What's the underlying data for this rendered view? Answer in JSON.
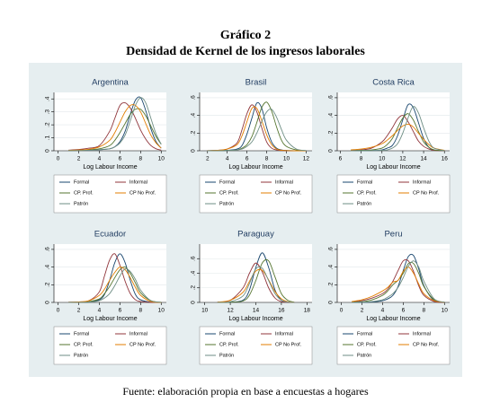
{
  "header": {
    "title": "Gráfico 2",
    "subtitle": "Densidad de Kernel de los ingresos laborales"
  },
  "source": "Fuente: elaboración propia en base a encuestas a hogares",
  "chart_data": [
    {
      "type": "line",
      "title": "Argentina",
      "x_label": "Log Labour Income",
      "x": [
        1,
        2,
        3,
        4,
        5,
        5.5,
        6,
        6.5,
        7,
        7.5,
        8,
        8.5,
        9,
        9.5,
        10
      ],
      "xlim": [
        -0.4,
        10.5
      ],
      "ylim": [
        0,
        0.45
      ],
      "xticks": [
        0,
        2,
        4,
        6,
        8,
        10
      ],
      "yticks": [
        0,
        {
          "value": 0.1,
          "label": ".1"
        },
        {
          "value": 0.2,
          "label": ".2"
        },
        {
          "value": 0.3,
          "label": ".3"
        },
        {
          "value": 0.4,
          "label": ".4"
        }
      ],
      "series": [
        {
          "name": "Formal",
          "color": "#1a476f",
          "values": [
            0.002,
            0.003,
            0.005,
            0.008,
            0.015,
            0.03,
            0.07,
            0.15,
            0.28,
            0.39,
            0.41,
            0.31,
            0.17,
            0.07,
            0.02
          ]
        },
        {
          "name": "Informal",
          "color": "#90353b",
          "values": [
            0.005,
            0.01,
            0.02,
            0.04,
            0.15,
            0.25,
            0.35,
            0.37,
            0.33,
            0.25,
            0.16,
            0.09,
            0.04,
            0.015,
            0.005
          ]
        },
        {
          "name": "CP. Prof.",
          "color": "#55752f",
          "values": [
            0.002,
            0.004,
            0.008,
            0.015,
            0.04,
            0.08,
            0.14,
            0.21,
            0.28,
            0.32,
            0.32,
            0.27,
            0.19,
            0.11,
            0.05
          ]
        },
        {
          "name": "CP No Prof.",
          "color": "#e37e00",
          "values": [
            0.003,
            0.006,
            0.012,
            0.03,
            0.08,
            0.14,
            0.22,
            0.3,
            0.35,
            0.35,
            0.3,
            0.21,
            0.12,
            0.06,
            0.02
          ]
        },
        {
          "name": "Patrón",
          "color": "#6e8e84",
          "values": [
            0.001,
            0.002,
            0.004,
            0.008,
            0.015,
            0.03,
            0.06,
            0.12,
            0.23,
            0.35,
            0.41,
            0.37,
            0.25,
            0.13,
            0.05
          ]
        }
      ]
    },
    {
      "type": "line",
      "title": "Brasil",
      "x_label": "Log Labour Income",
      "x": [
        2,
        3,
        4,
        5,
        5.5,
        6,
        6.5,
        7,
        7.5,
        8,
        8.5,
        9,
        9.5,
        10,
        11,
        12
      ],
      "xlim": [
        1.2,
        12.6
      ],
      "ylim": [
        0,
        0.66
      ],
      "xticks": [
        2,
        4,
        6,
        8,
        10,
        12
      ],
      "yticks": [
        0,
        {
          "value": 0.2,
          "label": ".2"
        },
        {
          "value": 0.4,
          "label": ".4"
        },
        {
          "value": 0.6,
          "label": ".6"
        }
      ],
      "series": [
        {
          "name": "Formal",
          "color": "#1a476f",
          "values": [
            0,
            0.002,
            0.005,
            0.02,
            0.06,
            0.19,
            0.37,
            0.54,
            0.48,
            0.26,
            0.1,
            0.03,
            0.01,
            0.004,
            0.001,
            0
          ]
        },
        {
          "name": "Informal",
          "color": "#90353b",
          "values": [
            0.002,
            0.005,
            0.02,
            0.09,
            0.24,
            0.42,
            0.52,
            0.44,
            0.26,
            0.1,
            0.03,
            0.01,
            0.003,
            0.001,
            0,
            0
          ]
        },
        {
          "name": "CP. Prof.",
          "color": "#55752f",
          "values": [
            0,
            0.002,
            0.004,
            0.01,
            0.03,
            0.07,
            0.16,
            0.32,
            0.49,
            0.55,
            0.45,
            0.27,
            0.12,
            0.05,
            0.01,
            0
          ]
        },
        {
          "name": "CP No Prof.",
          "color": "#e37e00",
          "values": [
            0.002,
            0.005,
            0.02,
            0.07,
            0.17,
            0.33,
            0.48,
            0.48,
            0.34,
            0.18,
            0.07,
            0.02,
            0.006,
            0.002,
            0,
            0
          ]
        },
        {
          "name": "Patrón",
          "color": "#6e8e84",
          "values": [
            0,
            0.001,
            0.003,
            0.01,
            0.02,
            0.05,
            0.1,
            0.2,
            0.33,
            0.44,
            0.47,
            0.38,
            0.24,
            0.12,
            0.02,
            0.003
          ]
        }
      ]
    },
    {
      "type": "line",
      "title": "Costa Rica",
      "x_label": "Log Labour Income",
      "x": [
        7,
        8,
        9,
        10,
        10.5,
        11,
        11.5,
        12,
        12.5,
        13,
        13.5,
        14,
        14.5,
        15,
        16
      ],
      "xlim": [
        5.7,
        16.5
      ],
      "ylim": [
        0,
        0.66
      ],
      "xticks": [
        6,
        8,
        10,
        12,
        14,
        16
      ],
      "yticks": [
        0,
        {
          "value": 0.2,
          "label": ".2"
        },
        {
          "value": 0.4,
          "label": ".4"
        },
        {
          "value": 0.6,
          "label": ".6"
        }
      ],
      "series": [
        {
          "name": "Formal",
          "color": "#1a476f",
          "values": [
            0,
            0.001,
            0.003,
            0.01,
            0.03,
            0.06,
            0.17,
            0.35,
            0.52,
            0.49,
            0.32,
            0.14,
            0.04,
            0.01,
            0.001
          ]
        },
        {
          "name": "Informal",
          "color": "#90353b",
          "values": [
            0.005,
            0.01,
            0.03,
            0.1,
            0.17,
            0.26,
            0.36,
            0.4,
            0.33,
            0.22,
            0.11,
            0.05,
            0.02,
            0.005,
            0.001
          ]
        },
        {
          "name": "CP. Prof.",
          "color": "#55752f",
          "values": [
            0.002,
            0.005,
            0.01,
            0.03,
            0.07,
            0.14,
            0.26,
            0.37,
            0.42,
            0.35,
            0.22,
            0.1,
            0.04,
            0.01,
            0.002
          ]
        },
        {
          "name": "CP No Prof.",
          "color": "#e37e00",
          "values": [
            0.01,
            0.02,
            0.04,
            0.08,
            0.12,
            0.17,
            0.23,
            0.28,
            0.3,
            0.27,
            0.2,
            0.13,
            0.07,
            0.03,
            0.005
          ]
        },
        {
          "name": "Patrón",
          "color": "#6e8e84",
          "values": [
            0,
            0.001,
            0.002,
            0.005,
            0.01,
            0.03,
            0.08,
            0.2,
            0.37,
            0.5,
            0.43,
            0.26,
            0.11,
            0.03,
            0.002
          ]
        }
      ]
    },
    {
      "type": "line",
      "title": "Ecuador",
      "x_label": "Log Labour Income",
      "x": [
        1,
        2,
        3,
        4,
        4.5,
        5,
        5.5,
        6,
        6.5,
        7,
        7.5,
        8,
        9,
        10
      ],
      "xlim": [
        -0.4,
        10.5
      ],
      "ylim": [
        0,
        0.66
      ],
      "xticks": [
        0,
        2,
        4,
        6,
        8,
        10
      ],
      "yticks": [
        0,
        {
          "value": 0.2,
          "label": ".2"
        },
        {
          "value": 0.4,
          "label": ".4"
        },
        {
          "value": 0.6,
          "label": ".6"
        }
      ],
      "series": [
        {
          "name": "Formal",
          "color": "#1a476f",
          "values": [
            0,
            0.002,
            0.005,
            0.03,
            0.09,
            0.25,
            0.45,
            0.55,
            0.45,
            0.25,
            0.09,
            0.03,
            0.002,
            0
          ]
        },
        {
          "name": "Informal",
          "color": "#90353b",
          "values": [
            0.003,
            0.006,
            0.02,
            0.12,
            0.3,
            0.48,
            0.55,
            0.42,
            0.24,
            0.1,
            0.03,
            0.01,
            0.001,
            0
          ]
        },
        {
          "name": "CP. Prof.",
          "color": "#55752f",
          "values": [
            0.001,
            0.003,
            0.01,
            0.04,
            0.1,
            0.18,
            0.28,
            0.37,
            0.4,
            0.33,
            0.22,
            0.11,
            0.02,
            0.002
          ]
        },
        {
          "name": "CP No Prof.",
          "color": "#e37e00",
          "values": [
            0.002,
            0.005,
            0.02,
            0.08,
            0.15,
            0.25,
            0.34,
            0.4,
            0.37,
            0.28,
            0.17,
            0.08,
            0.01,
            0.001
          ]
        },
        {
          "name": "Patrón",
          "color": "#6e8e84",
          "values": [
            0,
            0.001,
            0.004,
            0.02,
            0.05,
            0.1,
            0.19,
            0.3,
            0.38,
            0.35,
            0.26,
            0.14,
            0.02,
            0.002
          ]
        }
      ]
    },
    {
      "type": "line",
      "title": "Paraguay",
      "x_label": "Log Labour Income",
      "x": [
        11,
        12,
        13,
        13.5,
        14,
        14.5,
        15,
        15.5,
        16,
        16.5,
        17
      ],
      "xlim": [
        9.6,
        18.4
      ],
      "ylim": [
        0,
        0.8
      ],
      "xticks": [
        10,
        12,
        14,
        16,
        18
      ],
      "yticks": [
        0,
        {
          "value": 0.2,
          "label": ".2"
        },
        {
          "value": 0.4,
          "label": ".4"
        },
        {
          "value": 0.6,
          "label": ".6"
        }
      ],
      "series": [
        {
          "name": "Formal",
          "color": "#1a476f",
          "values": [
            0,
            0.003,
            0.03,
            0.17,
            0.48,
            0.68,
            0.48,
            0.17,
            0.03,
            0.003,
            0
          ]
        },
        {
          "name": "Informal",
          "color": "#90353b",
          "values": [
            0.005,
            0.03,
            0.2,
            0.4,
            0.54,
            0.42,
            0.2,
            0.06,
            0.01,
            0.002,
            0
          ]
        },
        {
          "name": "CP. Prof.",
          "color": "#55752f",
          "values": [
            0,
            0.002,
            0.02,
            0.1,
            0.3,
            0.54,
            0.57,
            0.35,
            0.12,
            0.03,
            0.004
          ]
        },
        {
          "name": "CP No Prof.",
          "color": "#e37e00",
          "values": [
            0.004,
            0.03,
            0.14,
            0.29,
            0.43,
            0.44,
            0.31,
            0.15,
            0.05,
            0.01,
            0.002
          ]
        },
        {
          "name": "Patrón",
          "color": "#6e8e84",
          "values": [
            0.001,
            0.01,
            0.09,
            0.26,
            0.46,
            0.47,
            0.3,
            0.12,
            0.03,
            0.005,
            0.001
          ]
        }
      ]
    },
    {
      "type": "line",
      "title": "Peru",
      "x_label": "Log Labour Income",
      "x": [
        1,
        2,
        3,
        4,
        4.5,
        5,
        5.5,
        6,
        6.5,
        7,
        7.5,
        8,
        9,
        10
      ],
      "xlim": [
        -0.4,
        10.5
      ],
      "ylim": [
        0,
        0.66
      ],
      "xticks": [
        0,
        2,
        4,
        6,
        8,
        10
      ],
      "yticks": [
        0,
        {
          "value": 0.2,
          "label": ".2"
        },
        {
          "value": 0.4,
          "label": ".4"
        },
        {
          "value": 0.6,
          "label": ".6"
        }
      ],
      "series": [
        {
          "name": "Formal",
          "color": "#1a476f",
          "values": [
            0,
            0.002,
            0.005,
            0.02,
            0.04,
            0.08,
            0.18,
            0.36,
            0.52,
            0.53,
            0.38,
            0.19,
            0.02,
            0.001
          ]
        },
        {
          "name": "Informal",
          "color": "#90353b",
          "values": [
            0.005,
            0.02,
            0.05,
            0.1,
            0.15,
            0.24,
            0.36,
            0.47,
            0.47,
            0.35,
            0.19,
            0.08,
            0.01,
            0.001
          ]
        },
        {
          "name": "CP. Prof.",
          "color": "#55752f",
          "values": [
            0.002,
            0.008,
            0.03,
            0.08,
            0.13,
            0.2,
            0.25,
            0.33,
            0.44,
            0.44,
            0.33,
            0.18,
            0.03,
            0.002
          ]
        },
        {
          "name": "CP No Prof.",
          "color": "#e37e00",
          "values": [
            0.01,
            0.03,
            0.07,
            0.13,
            0.17,
            0.23,
            0.25,
            0.35,
            0.4,
            0.33,
            0.21,
            0.1,
            0.02,
            0.002
          ]
        },
        {
          "name": "Patrón",
          "color": "#6e8e84",
          "values": [
            0,
            0.003,
            0.01,
            0.03,
            0.06,
            0.1,
            0.17,
            0.28,
            0.41,
            0.47,
            0.4,
            0.24,
            0.04,
            0.003
          ]
        }
      ]
    }
  ]
}
